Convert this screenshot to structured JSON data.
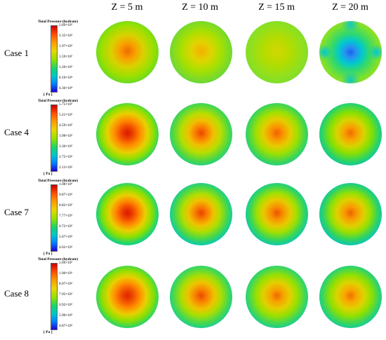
{
  "columns": [
    "Z = 5 m",
    "Z = 10 m",
    "Z = 15 m",
    "Z = 20 m"
  ],
  "legend_title": "Total Pressure (hydrate)",
  "unit": "[ Pa ]",
  "cases": [
    {
      "label": "Case 1",
      "ticks": [
        "2.69×10⁵",
        "2.35×10⁵",
        "1.97×10⁵",
        "1.59×10⁵",
        "1.20×10⁵",
        "8.19×10⁴",
        "4.36×10⁴"
      ]
    },
    {
      "label": "Case 4",
      "ticks": [
        "5.75×10⁵",
        "5.21×10⁵",
        "4.59×10⁵",
        "3.98×10⁵",
        "3.36×10⁵",
        "2.75×10⁵",
        "2.13×10⁵"
      ]
    },
    {
      "label": "Case 7",
      "ticks": [
        "1.08×10⁶",
        "9.87×10⁵",
        "8.82×10⁵",
        "7.77×10⁵",
        "6.72×10⁵",
        "5.67×10⁵",
        "4.62×10⁵"
      ]
    },
    {
      "label": "Case 8",
      "ticks": [
        "1.09×10⁶",
        "1.00×10⁶",
        "8.97×10⁵",
        "7.95×10⁵",
        "6.92×10⁵",
        "5.90×10⁵",
        "4.87×10⁵"
      ]
    }
  ]
}
